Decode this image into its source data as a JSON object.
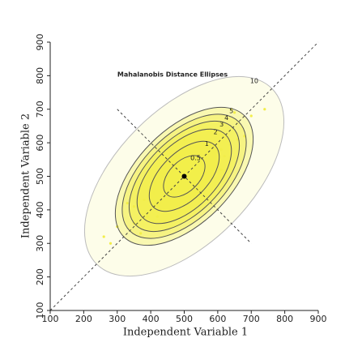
{
  "chart_data": {
    "type": "scatter",
    "title": "Mahalanobis Distance Ellipses",
    "x_label": "Independent Variable 1",
    "y_label": "Independent Variable 2",
    "xlim": [
      100,
      900
    ],
    "ylim": [
      100,
      900
    ],
    "xticks": [
      100,
      200,
      300,
      400,
      500,
      600,
      700,
      800,
      900
    ],
    "yticks": [
      100,
      200,
      300,
      400,
      500,
      600,
      700,
      800,
      900
    ],
    "color": "#f2ee4a",
    "x": [
      420,
      560,
      380,
      610,
      470,
      530,
      350,
      650,
      490,
      440,
      580,
      300,
      700,
      510,
      460,
      620,
      400,
      540,
      330,
      680,
      450,
      590,
      370,
      520,
      480,
      640,
      410,
      560,
      260,
      740,
      500,
      430,
      570,
      390,
      610,
      350,
      660,
      470,
      530,
      280
    ],
    "y": [
      380,
      600,
      430,
      580,
      520,
      470,
      360,
      690,
      560,
      400,
      640,
      350,
      680,
      450,
      540,
      560,
      470,
      600,
      420,
      620,
      500,
      530,
      330,
      570,
      420,
      700,
      450,
      510,
      320,
      700,
      610,
      470,
      640,
      380,
      520,
      410,
      610,
      460,
      560,
      300
    ],
    "center": [
      500,
      500
    ],
    "reference_lines": [
      {
        "x": [
          100,
          900
        ],
        "y": [
          100,
          900
        ]
      },
      {
        "x": [
          300,
          700
        ],
        "y": [
          700,
          300
        ]
      }
    ],
    "ellipses": [
      {
        "label": "0.5",
        "major": 75,
        "minor": 45
      },
      {
        "label": "1",
        "major": 130,
        "minor": 70
      },
      {
        "label": "2",
        "major": 175,
        "minor": 95
      },
      {
        "label": "3",
        "major": 205,
        "minor": 110
      },
      {
        "label": "4",
        "major": 230,
        "minor": 125
      },
      {
        "label": "5",
        "major": 255,
        "minor": 140
      },
      {
        "label": "10",
        "major": 370,
        "minor": 200
      }
    ]
  }
}
